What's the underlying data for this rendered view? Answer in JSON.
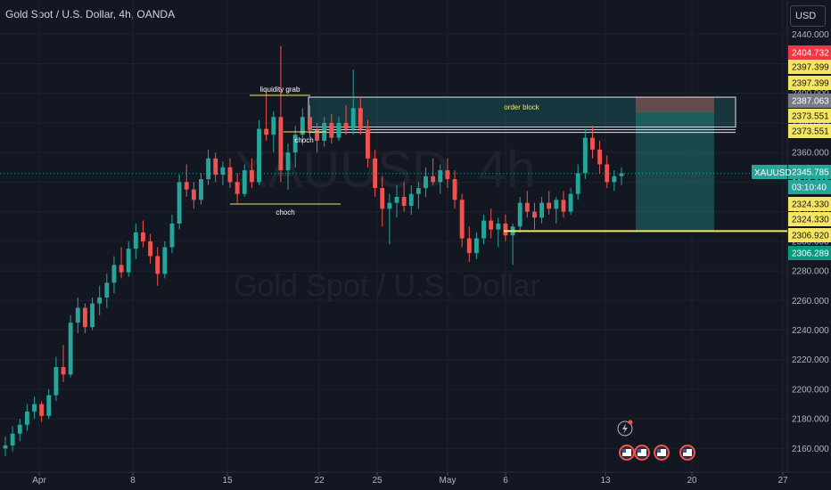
{
  "header": {
    "title": "Gold Spot / U.S. Dollar, 4h, OANDA",
    "currency": "USD"
  },
  "watermark": {
    "symbol": "XAUUSD, 4h",
    "name": "Gold Spot / U.S. Dollar"
  },
  "colors": {
    "up": "#26a69a",
    "down": "#ef5350",
    "background": "#131722",
    "highlight": "#f5e663"
  },
  "chart_data": {
    "type": "candlestick",
    "symbol": "XAUUSD",
    "timeframe": "4h",
    "y_ticks": [
      "2440.000",
      "2420.000",
      "2400.000",
      "2380.000",
      "2360.000",
      "2340.000",
      "2320.000",
      "2300.000",
      "2280.000",
      "2260.000",
      "2240.000",
      "2220.000",
      "2200.000",
      "2180.000",
      "2160.000"
    ],
    "y_tick_values": [
      2440,
      2420,
      2400,
      2380,
      2360,
      2340,
      2320,
      2300,
      2280,
      2260,
      2240,
      2220,
      2200,
      2180,
      2160
    ],
    "x_ticks": [
      "Apr",
      "8",
      "15",
      "22",
      "25",
      "May",
      "6",
      "13",
      "20",
      "27"
    ],
    "ylim": [
      2150,
      2445
    ],
    "price_tags": [
      {
        "label": "2404.732",
        "value": 2404.732,
        "color": "#f23645",
        "text_color": "#ffffff"
      },
      {
        "label": "2397.399",
        "value": 2397.399,
        "color": "#f5e663",
        "text_color": "#131722"
      },
      {
        "label": "2397.399",
        "value": 2397.399,
        "color": "#f5e663",
        "text_color": "#131722"
      },
      {
        "label": "2387.063",
        "value": 2387.063,
        "color": "#787b86",
        "text_color": "#ffffff"
      },
      {
        "label": "2373.551",
        "value": 2373.551,
        "color": "#f5e663",
        "text_color": "#131722"
      },
      {
        "label": "2373.551",
        "value": 2373.551,
        "color": "#f5e663",
        "text_color": "#131722"
      },
      {
        "label": "2345.785",
        "value": 2345.785,
        "color": "#26a69a",
        "text_color": "#ffffff"
      },
      {
        "label": "03:10:40",
        "value": 2345.785,
        "color": "#26a69a",
        "text_color": "#ffffff"
      },
      {
        "label": "2324.330",
        "value": 2324.33,
        "color": "#f5e663",
        "text_color": "#131722"
      },
      {
        "label": "2324.330",
        "value": 2324.33,
        "color": "#f5e663",
        "text_color": "#131722"
      },
      {
        "label": "2306.920",
        "value": 2306.92,
        "color": "#f5e663",
        "text_color": "#131722"
      },
      {
        "label": "2306.289",
        "value": 2306.289,
        "color": "#089981",
        "text_color": "#ffffff"
      }
    ],
    "current_price": 2345.785,
    "symbol_tag": "XAUUSD",
    "annotations": {
      "liquidity_grab": "liquidity grab",
      "choch_upper": "choch",
      "choch_lower": "choch",
      "order_block": "order block"
    },
    "order_block": {
      "top": 2397.399,
      "bottom": 2373.551
    },
    "position": {
      "entry": 2387.063,
      "stop": 2397.399,
      "target": 2306.289
    },
    "candles": [
      [
        2160,
        2168,
        2155,
        2162
      ],
      [
        2162,
        2175,
        2158,
        2170
      ],
      [
        2170,
        2180,
        2165,
        2176
      ],
      [
        2176,
        2190,
        2172,
        2185
      ],
      [
        2185,
        2195,
        2180,
        2190
      ],
      [
        2190,
        2192,
        2178,
        2182
      ],
      [
        2182,
        2200,
        2180,
        2196
      ],
      [
        2196,
        2222,
        2192,
        2215
      ],
      [
        2215,
        2230,
        2205,
        2210
      ],
      [
        2210,
        2250,
        2208,
        2245
      ],
      [
        2245,
        2262,
        2238,
        2255
      ],
      [
        2255,
        2258,
        2238,
        2242
      ],
      [
        2242,
        2262,
        2240,
        2258
      ],
      [
        2258,
        2270,
        2250,
        2262
      ],
      [
        2262,
        2278,
        2255,
        2272
      ],
      [
        2272,
        2290,
        2265,
        2284
      ],
      [
        2284,
        2296,
        2275,
        2279
      ],
      [
        2279,
        2300,
        2276,
        2295
      ],
      [
        2295,
        2312,
        2288,
        2306
      ],
      [
        2306,
        2314,
        2296,
        2300
      ],
      [
        2300,
        2305,
        2285,
        2290
      ],
      [
        2290,
        2296,
        2270,
        2278
      ],
      [
        2278,
        2300,
        2275,
        2296
      ],
      [
        2296,
        2318,
        2292,
        2312
      ],
      [
        2312,
        2345,
        2308,
        2340
      ],
      [
        2340,
        2352,
        2330,
        2335
      ],
      [
        2335,
        2340,
        2322,
        2328
      ],
      [
        2328,
        2346,
        2325,
        2342
      ],
      [
        2342,
        2362,
        2338,
        2356
      ],
      [
        2356,
        2360,
        2340,
        2345
      ],
      [
        2345,
        2354,
        2338,
        2350
      ],
      [
        2350,
        2356,
        2336,
        2340
      ],
      [
        2340,
        2346,
        2326,
        2332
      ],
      [
        2332,
        2352,
        2330,
        2348
      ],
      [
        2348,
        2356,
        2336,
        2340
      ],
      [
        2340,
        2382,
        2338,
        2376
      ],
      [
        2376,
        2400,
        2368,
        2372
      ],
      [
        2372,
        2388,
        2360,
        2384
      ],
      [
        2384,
        2432,
        2340,
        2348
      ],
      [
        2348,
        2366,
        2335,
        2360
      ],
      [
        2360,
        2378,
        2350,
        2372
      ],
      [
        2372,
        2390,
        2365,
        2384
      ],
      [
        2384,
        2392,
        2370,
        2375
      ],
      [
        2375,
        2380,
        2360,
        2368
      ],
      [
        2368,
        2384,
        2364,
        2380
      ],
      [
        2380,
        2386,
        2366,
        2370
      ],
      [
        2370,
        2384,
        2368,
        2380
      ],
      [
        2380,
        2392,
        2372,
        2376
      ],
      [
        2376,
        2416,
        2372,
        2390
      ],
      [
        2390,
        2398,
        2372,
        2376
      ],
      [
        2376,
        2382,
        2350,
        2356
      ],
      [
        2356,
        2362,
        2330,
        2336
      ],
      [
        2336,
        2344,
        2310,
        2322
      ],
      [
        2322,
        2332,
        2298,
        2326
      ],
      [
        2326,
        2338,
        2316,
        2330
      ],
      [
        2330,
        2340,
        2320,
        2324
      ],
      [
        2324,
        2338,
        2318,
        2332
      ],
      [
        2332,
        2340,
        2322,
        2336
      ],
      [
        2336,
        2350,
        2330,
        2344
      ],
      [
        2344,
        2356,
        2338,
        2340
      ],
      [
        2340,
        2352,
        2332,
        2348
      ],
      [
        2348,
        2356,
        2336,
        2342
      ],
      [
        2342,
        2348,
        2322,
        2328
      ],
      [
        2328,
        2332,
        2296,
        2302
      ],
      [
        2302,
        2310,
        2286,
        2292
      ],
      [
        2292,
        2306,
        2288,
        2302
      ],
      [
        2302,
        2318,
        2298,
        2314
      ],
      [
        2314,
        2322,
        2302,
        2308
      ],
      [
        2308,
        2316,
        2296,
        2312
      ],
      [
        2312,
        2318,
        2300,
        2304
      ],
      [
        2304,
        2312,
        2284,
        2310
      ],
      [
        2310,
        2330,
        2306,
        2326
      ],
      [
        2326,
        2334,
        2316,
        2320
      ],
      [
        2320,
        2326,
        2308,
        2316
      ],
      [
        2316,
        2330,
        2312,
        2326
      ],
      [
        2326,
        2334,
        2318,
        2322
      ],
      [
        2322,
        2330,
        2312,
        2328
      ],
      [
        2328,
        2334,
        2316,
        2320
      ],
      [
        2320,
        2336,
        2318,
        2332
      ],
      [
        2332,
        2352,
        2328,
        2346
      ],
      [
        2346,
        2376,
        2342,
        2370
      ],
      [
        2370,
        2378,
        2356,
        2362
      ],
      [
        2362,
        2368,
        2346,
        2352
      ],
      [
        2352,
        2358,
        2336,
        2340
      ],
      [
        2340,
        2348,
        2334,
        2344
      ],
      [
        2344,
        2350,
        2338,
        2346
      ]
    ]
  }
}
